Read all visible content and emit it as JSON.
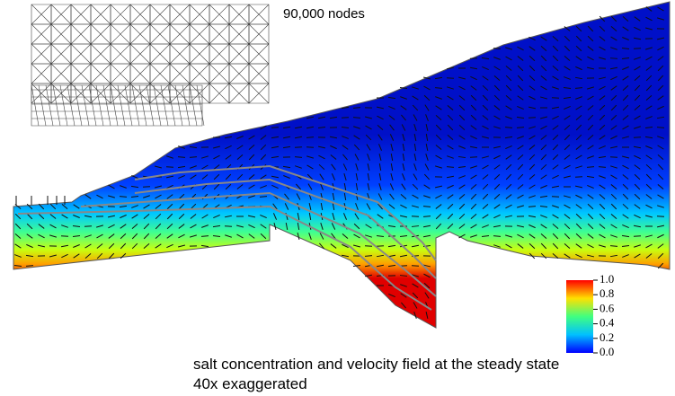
{
  "annotation": "90,000 nodes",
  "caption": [
    "salt concentration and velocity field at the steady state",
    "40x exaggerated"
  ],
  "colorbar": {
    "ticks": [
      {
        "value": 1,
        "label": "1.0"
      },
      0.8,
      0.6,
      0.4,
      0.2,
      {
        "value": 0,
        "label": "0.0"
      }
    ]
  }
}
